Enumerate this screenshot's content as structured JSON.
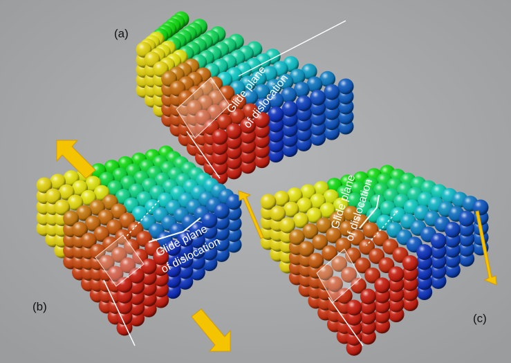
{
  "panels": [
    {
      "label": "(a)",
      "annotation": [
        "Glide plane",
        "of dislocation"
      ]
    },
    {
      "label": "(b)",
      "annotation": [
        "Glide plane",
        "of dislocation"
      ]
    },
    {
      "label": "(c)",
      "annotation": [
        "Glide plane",
        "of dislocation"
      ]
    }
  ]
}
